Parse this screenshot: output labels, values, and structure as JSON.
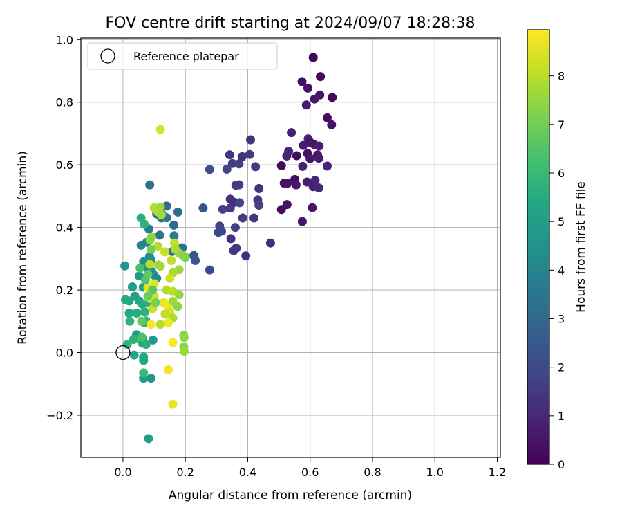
{
  "chart_data": {
    "type": "scatter",
    "title": "FOV centre drift starting at 2024/09/07 18:28:38",
    "xlabel": "Angular distance from reference (arcmin)",
    "ylabel": "Rotation from reference (arcmin)",
    "xlim": [
      -0.135,
      1.21
    ],
    "ylim": [
      -0.335,
      1.005
    ],
    "xticks": [
      0.0,
      0.2,
      0.4,
      0.6,
      0.8,
      1.0,
      1.2
    ],
    "xtick_labels": [
      "0.0",
      "0.2",
      "0.4",
      "0.6",
      "0.8",
      "1.0",
      "1.2"
    ],
    "yticks": [
      -0.2,
      0.0,
      0.2,
      0.4,
      0.6,
      0.8,
      1.0
    ],
    "ytick_labels": [
      "−0.2",
      "0.0",
      "0.2",
      "0.4",
      "0.6",
      "0.8",
      "1.0"
    ],
    "grid": true,
    "legend": {
      "position": "top-left",
      "entries": [
        "Reference platepar"
      ]
    },
    "reference_point": {
      "x": 0.0,
      "y": 0.0
    },
    "colorbar": {
      "label": "Hours from first FF file",
      "min": 0,
      "max": 8.95,
      "ticks": [
        0,
        1,
        2,
        3,
        4,
        5,
        6,
        7,
        8
      ],
      "tick_labels": [
        "0",
        "1",
        "2",
        "3",
        "4",
        "5",
        "6",
        "7",
        "8"
      ],
      "colormap": "viridis"
    },
    "series": [
      {
        "points": [
          [
            0.61,
            0.943,
            0.1
          ],
          [
            0.633,
            0.882,
            0.2
          ],
          [
            0.574,
            0.866,
            0.3
          ],
          [
            0.593,
            0.845,
            0.4
          ],
          [
            0.671,
            0.815,
            0.2
          ],
          [
            0.631,
            0.823,
            0.5
          ],
          [
            0.614,
            0.81,
            0.6
          ],
          [
            0.588,
            0.791,
            0.7
          ],
          [
            0.655,
            0.75,
            0.3
          ],
          [
            0.669,
            0.728,
            0.4
          ],
          [
            0.54,
            0.703,
            0.8
          ],
          [
            0.594,
            0.683,
            0.9
          ],
          [
            0.6,
            0.672,
            0.5
          ],
          [
            0.613,
            0.665,
            0.6
          ],
          [
            0.578,
            0.662,
            0.7
          ],
          [
            0.629,
            0.66,
            0.8
          ],
          [
            0.525,
            0.628,
            0.9
          ],
          [
            0.531,
            0.643,
            1.0
          ],
          [
            0.557,
            0.629,
            0.3
          ],
          [
            0.592,
            0.636,
            0.4
          ],
          [
            0.6,
            0.62,
            0.5
          ],
          [
            0.624,
            0.632,
            0.6
          ],
          [
            0.628,
            0.621,
            0.7
          ],
          [
            0.576,
            0.595,
            0.8
          ],
          [
            0.655,
            0.596,
            0.9
          ],
          [
            0.508,
            0.597,
            0.2
          ],
          [
            0.551,
            0.553,
            0.3
          ],
          [
            0.517,
            0.541,
            0.4
          ],
          [
            0.528,
            0.541,
            0.5
          ],
          [
            0.555,
            0.536,
            0.6
          ],
          [
            0.59,
            0.545,
            0.7
          ],
          [
            0.61,
            0.53,
            0.8
          ],
          [
            0.616,
            0.55,
            0.9
          ],
          [
            0.628,
            0.526,
            1.0
          ],
          [
            0.508,
            0.457,
            0.3
          ],
          [
            0.526,
            0.473,
            0.4
          ],
          [
            0.607,
            0.463,
            0.5
          ],
          [
            0.575,
            0.419,
            0.6
          ],
          [
            0.409,
            0.68,
            1.2
          ],
          [
            0.342,
            0.632,
            1.4
          ],
          [
            0.382,
            0.626,
            1.3
          ],
          [
            0.406,
            0.633,
            1.5
          ],
          [
            0.351,
            0.604,
            1.6
          ],
          [
            0.372,
            0.603,
            1.7
          ],
          [
            0.278,
            0.585,
            2.2
          ],
          [
            0.333,
            0.586,
            1.8
          ],
          [
            0.425,
            0.594,
            1.5
          ],
          [
            0.362,
            0.535,
            1.4
          ],
          [
            0.372,
            0.536,
            1.6
          ],
          [
            0.436,
            0.524,
            1.3
          ],
          [
            0.344,
            0.49,
            1.2
          ],
          [
            0.358,
            0.48,
            1.1
          ],
          [
            0.374,
            0.479,
            1.9
          ],
          [
            0.432,
            0.488,
            1.4
          ],
          [
            0.436,
            0.471,
            1.7
          ],
          [
            0.257,
            0.462,
            2.3
          ],
          [
            0.32,
            0.458,
            1.8
          ],
          [
            0.344,
            0.462,
            1.5
          ],
          [
            0.384,
            0.43,
            1.6
          ],
          [
            0.42,
            0.43,
            1.4
          ],
          [
            0.36,
            0.4,
            1.7
          ],
          [
            0.31,
            0.404,
            1.8
          ],
          [
            0.316,
            0.388,
            1.9
          ],
          [
            0.306,
            0.384,
            2.0
          ],
          [
            0.346,
            0.364,
            1.3
          ],
          [
            0.363,
            0.334,
            1.4
          ],
          [
            0.355,
            0.326,
            1.5
          ],
          [
            0.473,
            0.35,
            1.1
          ],
          [
            0.394,
            0.309,
            1.2
          ],
          [
            0.278,
            0.264,
            2.0
          ],
          [
            0.227,
            0.31,
            2.3
          ],
          [
            0.232,
            0.294,
            2.4
          ],
          [
            0.086,
            0.536,
            3.4
          ],
          [
            0.14,
            0.468,
            3.0
          ],
          [
            0.176,
            0.449,
            3.2
          ],
          [
            0.125,
            0.442,
            2.8
          ],
          [
            0.14,
            0.431,
            3.5
          ],
          [
            0.108,
            0.443,
            3.3
          ],
          [
            0.123,
            0.43,
            3.6
          ],
          [
            0.163,
            0.407,
            3.1
          ],
          [
            0.083,
            0.395,
            3.7
          ],
          [
            0.118,
            0.375,
            3.4
          ],
          [
            0.164,
            0.373,
            3.8
          ],
          [
            0.076,
            0.352,
            3.9
          ],
          [
            0.19,
            0.335,
            3.3
          ],
          [
            0.058,
            0.343,
            4.0
          ],
          [
            0.158,
            0.323,
            3.5
          ],
          [
            0.085,
            0.307,
            4.2
          ],
          [
            0.066,
            0.29,
            4.3
          ],
          [
            0.09,
            0.296,
            4.4
          ],
          [
            0.006,
            0.277,
            4.6
          ],
          [
            0.076,
            0.273,
            4.5
          ],
          [
            0.092,
            0.26,
            4.7
          ],
          [
            0.099,
            0.248,
            4.3
          ],
          [
            0.052,
            0.245,
            4.8
          ],
          [
            0.108,
            0.237,
            4.1
          ],
          [
            0.03,
            0.21,
            4.9
          ],
          [
            0.065,
            0.209,
            5.0
          ],
          [
            0.038,
            0.18,
            5.1
          ],
          [
            0.052,
            0.165,
            5.2
          ],
          [
            0.02,
            0.165,
            5.3
          ],
          [
            0.008,
            0.169,
            5.4
          ],
          [
            0.062,
            0.155,
            5.5
          ],
          [
            0.086,
            0.158,
            5.6
          ],
          [
            0.07,
            0.13,
            5.7
          ],
          [
            0.02,
            0.126,
            5.4
          ],
          [
            0.044,
            0.126,
            5.5
          ],
          [
            0.022,
            0.1,
            5.8
          ],
          [
            0.068,
            0.096,
            5.6
          ],
          [
            0.074,
            0.101,
            5.9
          ],
          [
            0.043,
            0.057,
            5.0
          ],
          [
            0.062,
            0.046,
            4.9
          ],
          [
            0.096,
            0.04,
            4.8
          ],
          [
            0.034,
            0.042,
            5.7
          ],
          [
            0.062,
            0.03,
            5.5
          ],
          [
            0.074,
            0.026,
            5.6
          ],
          [
            0.014,
            0.026,
            5.8
          ],
          [
            0.066,
            -0.014,
            5.4
          ],
          [
            0.036,
            -0.008,
            5.3
          ],
          [
            0.066,
            -0.025,
            5.2
          ],
          [
            0.09,
            -0.082,
            4.7
          ],
          [
            0.066,
            -0.082,
            4.9
          ],
          [
            0.066,
            -0.065,
            5.9
          ],
          [
            0.082,
            -0.275,
            5.0
          ],
          [
            0.058,
            0.43,
            5.6
          ],
          [
            0.068,
            0.41,
            5.8
          ],
          [
            0.12,
            0.713,
            8.4
          ],
          [
            0.1,
            0.463,
            8.0
          ],
          [
            0.12,
            0.465,
            7.6
          ],
          [
            0.112,
            0.45,
            7.8
          ],
          [
            0.123,
            0.44,
            7.7
          ],
          [
            0.092,
            0.37,
            7.5
          ],
          [
            0.112,
            0.34,
            7.9
          ],
          [
            0.134,
            0.322,
            8.2
          ],
          [
            0.114,
            0.28,
            7.7
          ],
          [
            0.086,
            0.282,
            8.0
          ],
          [
            0.18,
            0.318,
            7.4
          ],
          [
            0.2,
            0.305,
            7.2
          ],
          [
            0.19,
            0.312,
            7.3
          ],
          [
            0.155,
            0.294,
            8.1
          ],
          [
            0.12,
            0.276,
            7.7
          ],
          [
            0.18,
            0.265,
            7.6
          ],
          [
            0.16,
            0.255,
            7.8
          ],
          [
            0.15,
            0.237,
            8.3
          ],
          [
            0.1,
            0.22,
            8.5
          ],
          [
            0.08,
            0.207,
            8.6
          ],
          [
            0.14,
            0.2,
            7.9
          ],
          [
            0.16,
            0.195,
            8.0
          ],
          [
            0.1,
            0.18,
            8.4
          ],
          [
            0.18,
            0.185,
            7.5
          ],
          [
            0.09,
            0.172,
            8.6
          ],
          [
            0.13,
            0.16,
            8.7
          ],
          [
            0.145,
            0.15,
            8.8
          ],
          [
            0.175,
            0.147,
            7.4
          ],
          [
            0.16,
            0.164,
            7.6
          ],
          [
            0.095,
            0.14,
            8.2
          ],
          [
            0.15,
            0.13,
            8.4
          ],
          [
            0.16,
            0.11,
            7.8
          ],
          [
            0.145,
            0.095,
            8.8
          ],
          [
            0.12,
            0.09,
            8.0
          ],
          [
            0.09,
            0.09,
            8.9
          ],
          [
            0.135,
            0.123,
            8.1
          ],
          [
            0.195,
            0.055,
            7.3
          ],
          [
            0.196,
            0.048,
            7.5
          ],
          [
            0.195,
            0.018,
            7.4
          ],
          [
            0.196,
            0.004,
            7.6
          ],
          [
            0.16,
            0.032,
            8.9
          ],
          [
            0.145,
            -0.055,
            8.8
          ],
          [
            0.16,
            -0.165,
            8.7
          ],
          [
            0.165,
            0.35,
            8.1
          ],
          [
            0.168,
            0.33,
            7.8
          ],
          [
            0.087,
            0.36,
            7.3
          ],
          [
            0.09,
            0.33,
            7.0
          ],
          [
            0.08,
            0.25,
            6.8
          ],
          [
            0.095,
            0.2,
            6.6
          ],
          [
            0.055,
            0.27,
            6.3
          ],
          [
            0.072,
            0.232,
            6.5
          ],
          [
            0.08,
            0.18,
            6.9
          ],
          [
            0.105,
            0.16,
            7.1
          ],
          [
            0.06,
            0.1,
            6.7
          ],
          [
            0.06,
            0.05,
            6.4
          ]
        ]
      }
    ]
  }
}
